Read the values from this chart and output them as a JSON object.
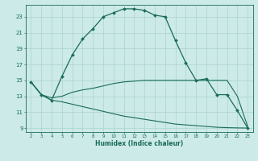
{
  "xlabel": "Humidex (Indice chaleur)",
  "bg_color": "#cceae7",
  "line_color": "#1a6b5a",
  "grid_color": "#aad4cf",
  "xticks": [
    2,
    3,
    4,
    5,
    6,
    7,
    8,
    9,
    10,
    11,
    12,
    13,
    14,
    15,
    16,
    17,
    18,
    19,
    20,
    21,
    22,
    23
  ],
  "yticks": [
    9,
    11,
    13,
    15,
    17,
    19,
    21,
    23
  ],
  "xlim": [
    1.5,
    23.5
  ],
  "ylim": [
    8.5,
    24.5
  ],
  "lines": [
    {
      "x": [
        2,
        3,
        4,
        5,
        6,
        7,
        8,
        9,
        10,
        11,
        12,
        13,
        14,
        15,
        16,
        17,
        18,
        19,
        20,
        21,
        22,
        23
      ],
      "y": [
        14.8,
        13.2,
        12.5,
        15.5,
        18.2,
        20.2,
        21.5,
        23.0,
        23.5,
        24.0,
        24.0,
        23.8,
        23.2,
        23.0,
        20.0,
        17.2,
        15.0,
        15.2,
        13.2,
        13.2,
        11.2,
        9.0
      ],
      "marker": "D",
      "markersize": 2.0,
      "lw": 0.9
    },
    {
      "x": [
        2,
        3,
        4,
        5,
        6,
        7,
        8,
        9,
        10,
        11,
        12,
        13,
        14,
        15,
        16,
        17,
        18,
        19,
        20,
        21,
        22,
        23
      ],
      "y": [
        14.8,
        13.2,
        12.8,
        13.0,
        13.5,
        13.8,
        14.0,
        14.3,
        14.6,
        14.8,
        14.9,
        15.0,
        15.0,
        15.0,
        15.0,
        15.0,
        15.0,
        15.0,
        15.0,
        15.0,
        13.0,
        9.2
      ],
      "marker": null,
      "markersize": 0,
      "lw": 0.8
    },
    {
      "x": [
        2,
        3,
        4,
        5,
        6,
        7,
        8,
        9,
        10,
        11,
        12,
        13,
        14,
        15,
        16,
        17,
        18,
        19,
        20,
        21,
        22,
        23
      ],
      "y": [
        14.8,
        13.2,
        12.5,
        12.3,
        12.0,
        11.7,
        11.4,
        11.1,
        10.8,
        10.5,
        10.3,
        10.1,
        9.9,
        9.7,
        9.5,
        9.4,
        9.3,
        9.2,
        9.1,
        9.05,
        9.02,
        9.0
      ],
      "marker": null,
      "markersize": 0,
      "lw": 0.8
    }
  ]
}
